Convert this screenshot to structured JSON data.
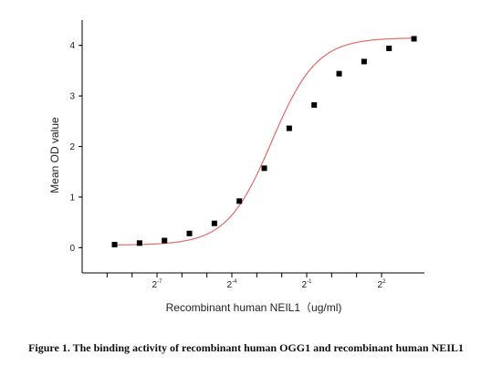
{
  "caption": "Figure 1. The binding activity of recombinant human OGG1 and recombinant human NEIL1",
  "chart_data": {
    "type": "scatter",
    "xlabel": "Recombinant human  NEIL1（ug/ml)",
    "ylabel": "Mean OD value",
    "x_scale": "log2",
    "xlim_log2": [
      -9.5,
      2.5
    ],
    "ylim": [
      -0.5,
      4.5
    ],
    "y_ticks": [
      0,
      1,
      2,
      3,
      4
    ],
    "x_tick_labels": [
      {
        "base": "2",
        "exp": "-7",
        "log2": -7
      },
      {
        "base": "2",
        "exp": "-4",
        "log2": -4
      },
      {
        "base": "2",
        "exp": "-1",
        "log2": -1
      },
      {
        "base": "2",
        "exp": "2",
        "log2": 2
      }
    ],
    "x_minor_ticks_log2": [
      -9,
      -8,
      -7,
      -6,
      -5,
      -4,
      -3,
      -2,
      -1,
      0,
      1,
      2
    ],
    "grid": false,
    "legend": "none",
    "marker_color": "#000000",
    "fit_color": "#e36a6a",
    "points": [
      {
        "log2x": -8.7,
        "y": 0.06
      },
      {
        "log2x": -7.7,
        "y": 0.09
      },
      {
        "log2x": -6.7,
        "y": 0.14
      },
      {
        "log2x": -5.7,
        "y": 0.28
      },
      {
        "log2x": -4.7,
        "y": 0.48
      },
      {
        "log2x": -3.7,
        "y": 0.92
      },
      {
        "log2x": -2.7,
        "y": 1.57
      },
      {
        "log2x": -1.7,
        "y": 2.36
      },
      {
        "log2x": -0.7,
        "y": 2.82
      },
      {
        "log2x": 0.3,
        "y": 3.44
      },
      {
        "log2x": 1.3,
        "y": 3.68
      },
      {
        "log2x": 2.3,
        "y": 3.94
      },
      {
        "log2x": 3.3,
        "y": 4.13
      }
    ],
    "fit": {
      "bottom": 0.05,
      "top": 4.15,
      "midpoint_log2x": -2.4,
      "slope": 0.9
    }
  }
}
